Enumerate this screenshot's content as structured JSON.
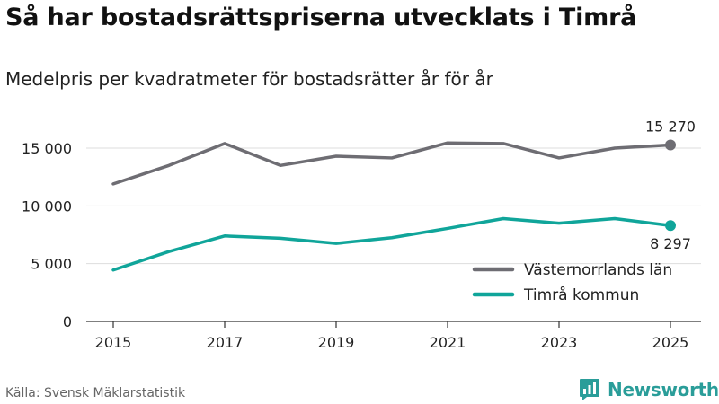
{
  "title": "Så har bostadsrättspriserna utvecklats i Timrå",
  "subtitle": "Medelpris per kvadratmeter för bostadsrätter år för år",
  "source": "Källa: Svensk Mäklarstatistik",
  "brand": {
    "name": "Newsworthy",
    "icon": "newsworthy-logo-icon"
  },
  "colors": {
    "lan": "#6e6d73",
    "kommun": "#10a59a",
    "grid": "#dddddd",
    "axis": "#333333",
    "brand": "#2a9d99"
  },
  "chart_data": {
    "type": "line",
    "x": [
      2015,
      2016,
      2017,
      2018,
      2019,
      2020,
      2021,
      2022,
      2023,
      2024,
      2025
    ],
    "xticks": [
      2015,
      2017,
      2019,
      2021,
      2023,
      2025
    ],
    "ylim": [
      0,
      17000
    ],
    "yticks": [
      0,
      5000,
      10000,
      15000
    ],
    "ytick_labels": [
      "0",
      "5 000",
      "10 000",
      "15 000"
    ],
    "grid": true,
    "legend_position": "bottom-right",
    "series": [
      {
        "name": "Västernorrlands län",
        "values": [
          11900,
          13500,
          15400,
          13500,
          14300,
          14150,
          15450,
          15400,
          14150,
          15000,
          15270
        ],
        "end_label": "15 270",
        "color_key": "lan"
      },
      {
        "name": "Timrå kommun",
        "values": [
          4450,
          6050,
          7400,
          7200,
          6750,
          7250,
          8050,
          8900,
          8500,
          8900,
          8297
        ],
        "end_label": "8 297",
        "color_key": "kommun"
      }
    ]
  }
}
